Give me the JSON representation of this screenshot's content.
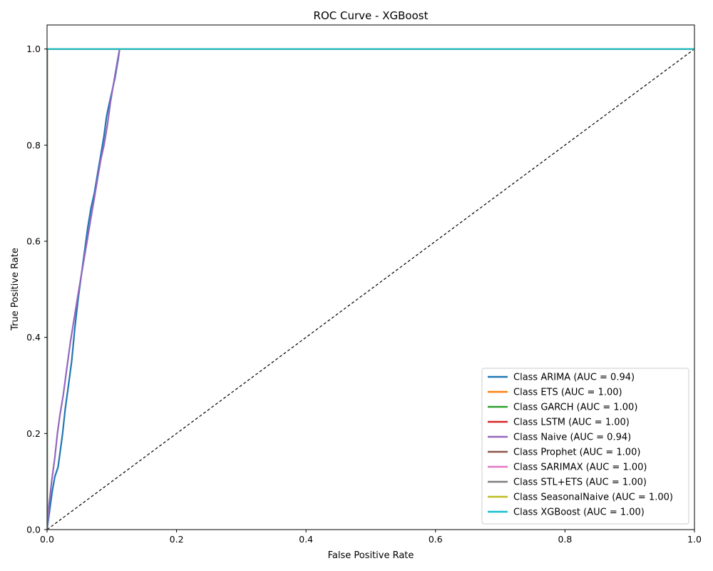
{
  "chart_data": {
    "type": "line",
    "title": "ROC Curve - XGBoost",
    "xlabel": "False Positive Rate",
    "ylabel": "True Positive Rate",
    "xlim": [
      0.0,
      1.0
    ],
    "ylim": [
      0.0,
      1.05
    ],
    "x_ticks": [
      "0.0",
      "0.2",
      "0.4",
      "0.6",
      "0.8",
      "1.0"
    ],
    "y_ticks": [
      "0.0",
      "0.2",
      "0.4",
      "0.6",
      "0.8",
      "1.0"
    ],
    "grid": false,
    "legend_position": "bottom-right",
    "diagonal": {
      "x": [
        0,
        1
      ],
      "y": [
        0,
        1
      ],
      "color": "#000000",
      "style": "dashed"
    },
    "series": [
      {
        "name": "Class ARIMA (AUC = 0.94)",
        "color": "#1f77b4",
        "x": [
          0,
          0.004,
          0.008,
          0.012,
          0.017,
          0.02,
          0.024,
          0.028,
          0.033,
          0.038,
          0.043,
          0.048,
          0.053,
          0.058,
          0.063,
          0.068,
          0.073,
          0.078,
          0.083,
          0.088,
          0.092,
          0.095,
          0.1,
          0.105,
          0.11,
          0.112,
          1.0
        ],
        "y": [
          0,
          0.04,
          0.08,
          0.11,
          0.13,
          0.16,
          0.2,
          0.25,
          0.3,
          0.35,
          0.42,
          0.48,
          0.53,
          0.58,
          0.63,
          0.67,
          0.7,
          0.74,
          0.78,
          0.82,
          0.86,
          0.88,
          0.91,
          0.94,
          0.98,
          1.0,
          1.0
        ]
      },
      {
        "name": "Class ETS (AUC = 1.00)",
        "color": "#ff7f0e",
        "x": [
          0,
          0,
          1
        ],
        "y": [
          0,
          1,
          1
        ]
      },
      {
        "name": "Class GARCH (AUC = 1.00)",
        "color": "#2ca02c",
        "x": [
          0,
          0,
          1
        ],
        "y": [
          0,
          1,
          1
        ]
      },
      {
        "name": "Class LSTM (AUC = 1.00)",
        "color": "#d62728",
        "x": [
          0,
          0,
          1
        ],
        "y": [
          0,
          1,
          1
        ]
      },
      {
        "name": "Class Naive (AUC = 0.94)",
        "color": "#9467bd",
        "x": [
          0,
          0.003,
          0.007,
          0.012,
          0.016,
          0.02,
          0.025,
          0.03,
          0.036,
          0.042,
          0.048,
          0.053,
          0.058,
          0.063,
          0.068,
          0.073,
          0.078,
          0.083,
          0.088,
          0.093,
          0.098,
          0.103,
          0.108,
          0.112,
          1.0
        ],
        "y": [
          0,
          0.05,
          0.1,
          0.15,
          0.2,
          0.24,
          0.28,
          0.33,
          0.39,
          0.44,
          0.49,
          0.53,
          0.57,
          0.61,
          0.65,
          0.69,
          0.73,
          0.77,
          0.8,
          0.84,
          0.89,
          0.93,
          0.97,
          1.0,
          1.0
        ]
      },
      {
        "name": "Class Prophet (AUC = 1.00)",
        "color": "#8c564b",
        "x": [
          0,
          0,
          1
        ],
        "y": [
          0,
          1,
          1
        ]
      },
      {
        "name": "Class SARIMAX (AUC = 1.00)",
        "color": "#e377c2",
        "x": [
          0,
          0,
          1
        ],
        "y": [
          0,
          1,
          1
        ]
      },
      {
        "name": "Class STL+ETS (AUC = 1.00)",
        "color": "#7f7f7f",
        "x": [
          0,
          0,
          1
        ],
        "y": [
          0,
          1,
          1
        ]
      },
      {
        "name": "Class SeasonalNaive (AUC = 1.00)",
        "color": "#bcbd22",
        "x": [
          0,
          0,
          1
        ],
        "y": [
          0,
          1,
          1
        ]
      },
      {
        "name": "Class XGBoost (AUC = 1.00)",
        "color": "#17becf",
        "x": [
          0,
          0,
          1
        ],
        "y": [
          0,
          1,
          1
        ]
      }
    ]
  }
}
